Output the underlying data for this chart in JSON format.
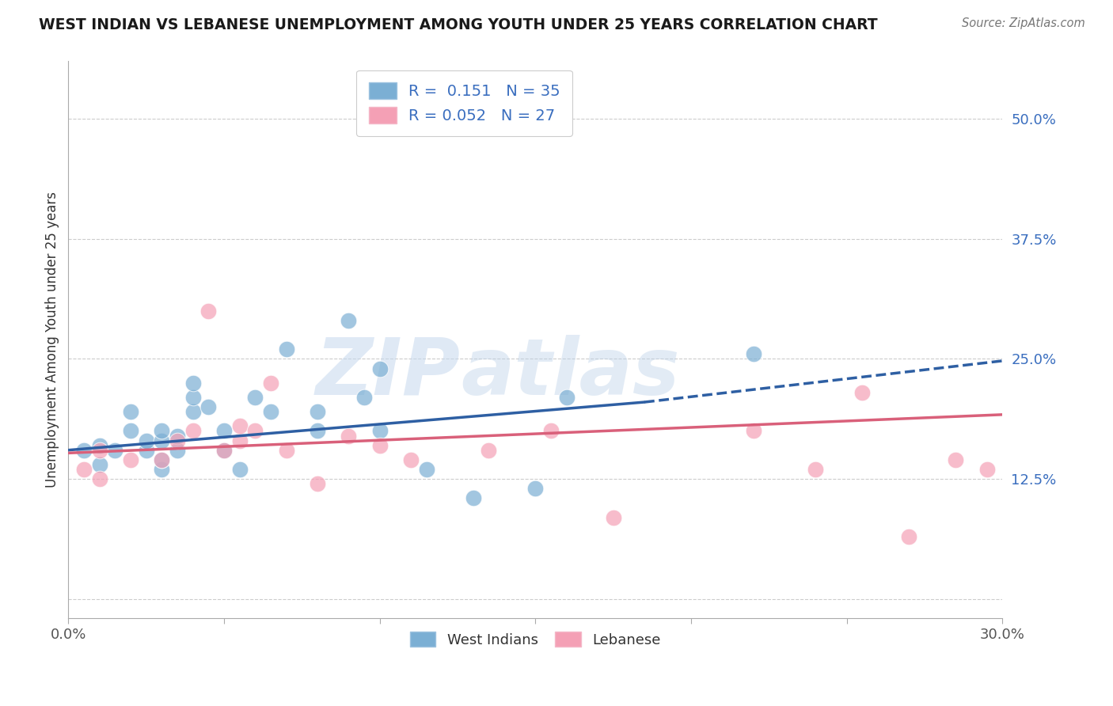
{
  "title": "WEST INDIAN VS LEBANESE UNEMPLOYMENT AMONG YOUTH UNDER 25 YEARS CORRELATION CHART",
  "source": "Source: ZipAtlas.com",
  "ylabel": "Unemployment Among Youth under 25 years",
  "y_ticks": [
    0.0,
    0.125,
    0.25,
    0.375,
    0.5
  ],
  "y_tick_labels": [
    "",
    "12.5%",
    "25.0%",
    "37.5%",
    "50.0%"
  ],
  "x_range": [
    0.0,
    0.3
  ],
  "y_range": [
    -0.02,
    0.56
  ],
  "blue_R": 0.151,
  "blue_N": 35,
  "pink_R": 0.052,
  "pink_N": 27,
  "blue_color": "#7bafd4",
  "pink_color": "#f4a0b5",
  "blue_line_color": "#2e5fa3",
  "pink_line_color": "#d9607a",
  "watermark_zip": "ZIP",
  "watermark_atlas": "atlas",
  "legend_labels": [
    "West Indians",
    "Lebanese"
  ],
  "blue_scatter_x": [
    0.005,
    0.01,
    0.01,
    0.015,
    0.02,
    0.02,
    0.025,
    0.025,
    0.03,
    0.03,
    0.03,
    0.03,
    0.035,
    0.035,
    0.04,
    0.04,
    0.04,
    0.045,
    0.05,
    0.05,
    0.055,
    0.06,
    0.065,
    0.07,
    0.08,
    0.08,
    0.09,
    0.095,
    0.1,
    0.1,
    0.115,
    0.13,
    0.15,
    0.16,
    0.22
  ],
  "blue_scatter_y": [
    0.155,
    0.14,
    0.16,
    0.155,
    0.175,
    0.195,
    0.155,
    0.165,
    0.135,
    0.145,
    0.165,
    0.175,
    0.155,
    0.17,
    0.195,
    0.21,
    0.225,
    0.2,
    0.155,
    0.175,
    0.135,
    0.21,
    0.195,
    0.26,
    0.195,
    0.175,
    0.29,
    0.21,
    0.24,
    0.175,
    0.135,
    0.105,
    0.115,
    0.21,
    0.255
  ],
  "pink_scatter_x": [
    0.005,
    0.01,
    0.01,
    0.02,
    0.03,
    0.035,
    0.04,
    0.045,
    0.05,
    0.055,
    0.055,
    0.06,
    0.065,
    0.07,
    0.08,
    0.09,
    0.1,
    0.11,
    0.135,
    0.155,
    0.175,
    0.22,
    0.24,
    0.255,
    0.27,
    0.285,
    0.295
  ],
  "pink_scatter_y": [
    0.135,
    0.125,
    0.155,
    0.145,
    0.145,
    0.165,
    0.175,
    0.3,
    0.155,
    0.165,
    0.18,
    0.175,
    0.225,
    0.155,
    0.12,
    0.17,
    0.16,
    0.145,
    0.155,
    0.175,
    0.085,
    0.175,
    0.135,
    0.215,
    0.065,
    0.145,
    0.135
  ],
  "background_color": "#ffffff",
  "grid_color": "#cccccc",
  "blue_line_start_x": 0.0,
  "blue_line_start_y": 0.155,
  "blue_line_solid_end_x": 0.185,
  "blue_line_solid_end_y": 0.205,
  "blue_line_end_x": 0.3,
  "blue_line_end_y": 0.248,
  "pink_line_start_x": 0.0,
  "pink_line_start_y": 0.152,
  "pink_line_end_x": 0.3,
  "pink_line_end_y": 0.192
}
